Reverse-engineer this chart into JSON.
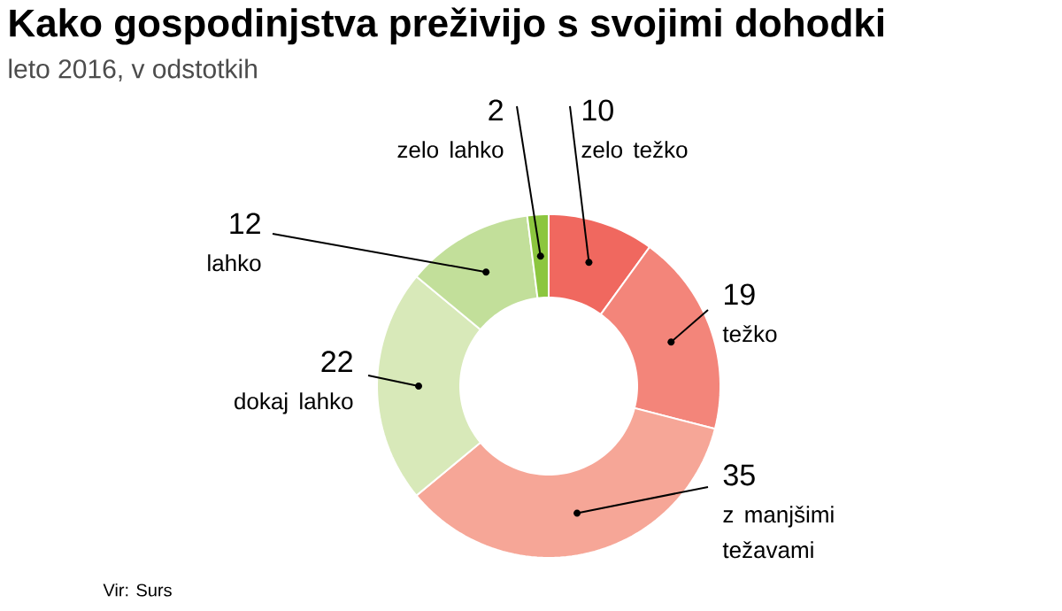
{
  "chart_data": {
    "type": "donut",
    "title": "Kako gospodinjstva preživijo s svojimi dohodki",
    "subtitle": "leto 2016, v odstotkih",
    "categories": [
      "zelo težko",
      "težko",
      "z manjšimi težavami",
      "dokaj lahko",
      "lahko",
      "zelo lahko"
    ],
    "values": [
      10,
      19,
      35,
      22,
      12,
      2
    ],
    "colors": [
      "#f0685f",
      "#f3857a",
      "#f6a697",
      "#d8e9b9",
      "#c2df9a",
      "#8cc63f"
    ],
    "data_labels": true,
    "annotations": [
      "Vir: Surs"
    ]
  }
}
